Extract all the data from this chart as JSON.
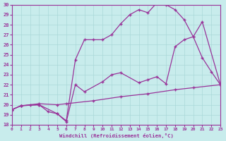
{
  "xlabel": "Windchill (Refroidissement éolien,°C)",
  "bg_color": "#c8ecec",
  "line_color": "#993399",
  "grid_color": "#aad8d8",
  "xlim": [
    0,
    23
  ],
  "ylim": [
    18,
    30
  ],
  "xticks": [
    0,
    1,
    2,
    3,
    4,
    5,
    6,
    7,
    8,
    9,
    10,
    11,
    12,
    13,
    14,
    15,
    16,
    17,
    18,
    19,
    20,
    21,
    22,
    23
  ],
  "yticks": [
    18,
    19,
    20,
    21,
    22,
    23,
    24,
    25,
    26,
    27,
    28,
    29,
    30
  ],
  "line1_x": [
    0,
    1,
    2,
    3,
    5,
    6,
    9,
    12,
    15,
    18,
    20,
    23
  ],
  "line1_y": [
    19.5,
    19.9,
    20.0,
    20.1,
    20.0,
    20.1,
    20.4,
    20.8,
    21.1,
    21.5,
    21.7,
    22.0
  ],
  "line2_x": [
    0,
    1,
    3,
    4,
    5,
    6,
    7,
    8,
    10,
    11,
    12,
    14,
    15,
    16,
    17,
    18,
    19,
    20,
    21,
    22,
    23
  ],
  "line2_y": [
    19.5,
    19.9,
    20.0,
    19.3,
    19.1,
    18.3,
    22.0,
    21.3,
    22.3,
    23.0,
    23.2,
    22.2,
    22.5,
    22.8,
    22.1,
    25.8,
    26.5,
    26.8,
    24.7,
    23.3,
    22.0
  ],
  "line3_x": [
    0,
    1,
    3,
    5,
    6,
    7,
    8,
    9,
    10,
    11,
    12,
    13,
    14,
    15,
    16,
    17,
    18,
    19,
    20,
    21,
    23
  ],
  "line3_y": [
    19.5,
    19.9,
    20.0,
    19.1,
    18.4,
    24.5,
    26.5,
    26.5,
    26.5,
    27.0,
    28.1,
    29.0,
    29.5,
    29.2,
    30.2,
    30.0,
    29.5,
    28.5,
    26.8,
    28.3,
    22.0
  ]
}
